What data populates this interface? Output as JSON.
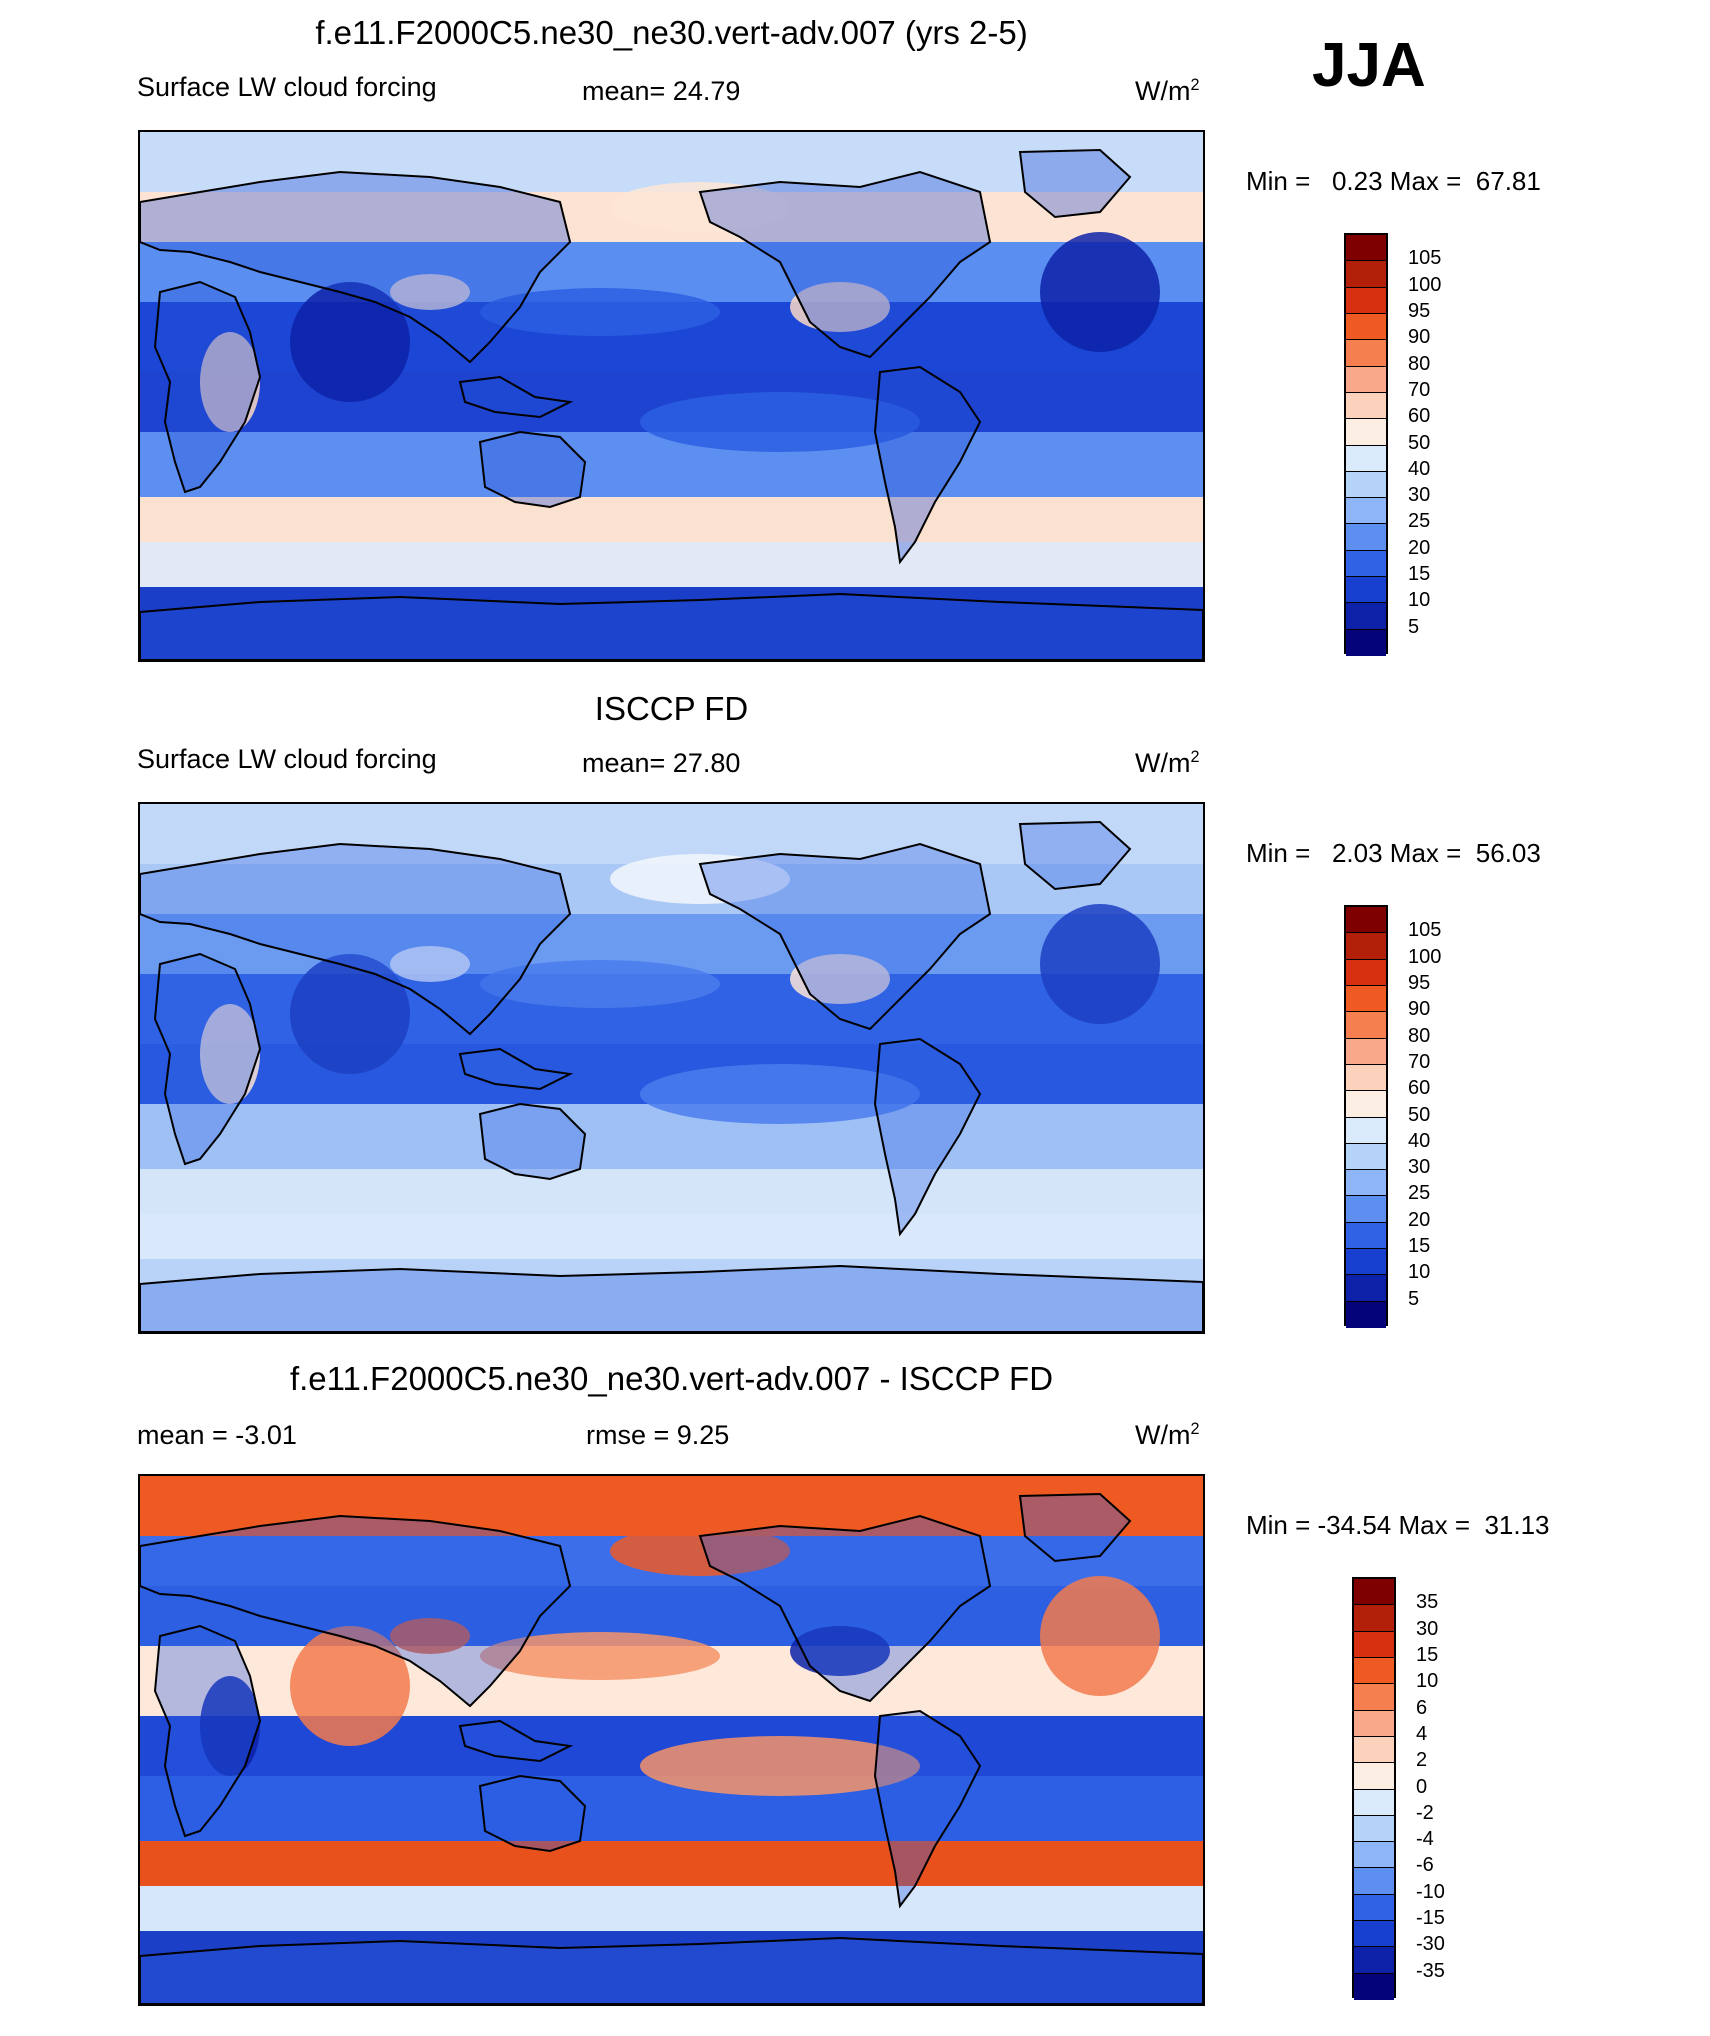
{
  "season": "JJA",
  "panels": [
    {
      "title": "f.e11.F2000C5.ne30_ne30.vert-adv.007 (yrs 2-5)",
      "left": "Surface LW cloud forcing",
      "center": "mean=  24.79",
      "units": "W/m",
      "units_sup": "2",
      "minmax": "Min =   0.23 Max =  67.81",
      "colorbar": {
        "labels": [
          "105",
          "100",
          "95",
          "90",
          "80",
          "70",
          "60",
          "50",
          "40",
          "30",
          "25",
          "20",
          "15",
          "10",
          "5"
        ],
        "colors": [
          "#7f0000",
          "#b3200a",
          "#d73010",
          "#ee5a22",
          "#f57f4f",
          "#f9a88a",
          "#fcd2bd",
          "#fdeee3",
          "#d9ebfb",
          "#b5d2f9",
          "#8db5f7",
          "#5d8ff0",
          "#2f62e4",
          "#1740d0",
          "#0d22a8",
          "#04037a"
        ]
      },
      "map": {
        "land_color": "#2350d8",
        "ocean_bands": [
          "#c6dcf8",
          "#fce3d3",
          "#5b8ef1",
          "#1c47d6",
          "#1d43d0",
          "#5d8ff0",
          "#fbe1d0",
          "#e2e8f6",
          "#1a3ec8"
        ],
        "features": {
          "a": "#fde6d6",
          "b": "#0d22a8",
          "c": "#fcd9c5",
          "d": "#2c5fe3"
        }
      }
    },
    {
      "title": "ISCCP FD",
      "left": "Surface LW cloud forcing",
      "center": "mean=  27.80",
      "units": "W/m",
      "units_sup": "2",
      "minmax": "Min =   2.03 Max =  56.03",
      "colorbar": {
        "labels": [
          "105",
          "100",
          "95",
          "90",
          "80",
          "70",
          "60",
          "50",
          "40",
          "30",
          "25",
          "20",
          "15",
          "10",
          "5"
        ],
        "colors": [
          "#7f0000",
          "#b3200a",
          "#d73010",
          "#ee5a22",
          "#f57f4f",
          "#f9a88a",
          "#fcd2bd",
          "#fdeee3",
          "#d9ebfb",
          "#b5d2f9",
          "#8db5f7",
          "#5d8ff0",
          "#2f62e4",
          "#1740d0",
          "#0d22a8",
          "#04037a"
        ]
      },
      "map": {
        "land_color": "#3568e6",
        "ocean_bands": [
          "#c2d8f8",
          "#aac8f6",
          "#6b9af1",
          "#2f62e4",
          "#2758df",
          "#9fc0f5",
          "#d4e5fa",
          "#d9e8fb",
          "#b8d2f8"
        ],
        "features": {
          "a": "#f3f7fd",
          "b": "#1c3fc3",
          "c": "#fbe4d6",
          "d": "#4a7ced"
        }
      }
    },
    {
      "title": "f.e11.F2000C5.ne30_ne30.vert-adv.007 - ISCCP FD",
      "left": "mean =  -3.01",
      "center": "rmse =    9.25",
      "units": "W/m",
      "units_sup": "2",
      "minmax": "Min = -34.54 Max =  31.13",
      "colorbar": {
        "labels": [
          "35",
          "30",
          "15",
          "10",
          "6",
          "4",
          "2",
          "0",
          "-2",
          "-4",
          "-6",
          "-10",
          "-15",
          "-30",
          "-35"
        ],
        "colors": [
          "#7f0000",
          "#b3200a",
          "#d73010",
          "#ee5a22",
          "#f57f4f",
          "#f9a88a",
          "#fcd2bd",
          "#fdeee3",
          "#d9ebfb",
          "#b5d2f9",
          "#8db5f7",
          "#5d8ff0",
          "#2f62e4",
          "#1740d0",
          "#0d22a8",
          "#04037a"
        ]
      },
      "map": {
        "land_color": "#2c5fe3",
        "ocean_bands": [
          "#ee5a22",
          "#3b6ee8",
          "#2d5fe2",
          "#fde8da",
          "#1f48d6",
          "#2c5fe3",
          "#e8501c",
          "#d6e6fb",
          "#1c3fc7"
        ],
        "features": {
          "a": "#ef5a24",
          "b": "#f37a4c",
          "c": "#0d22a8",
          "d": "#f6946a"
        }
      }
    }
  ]
}
